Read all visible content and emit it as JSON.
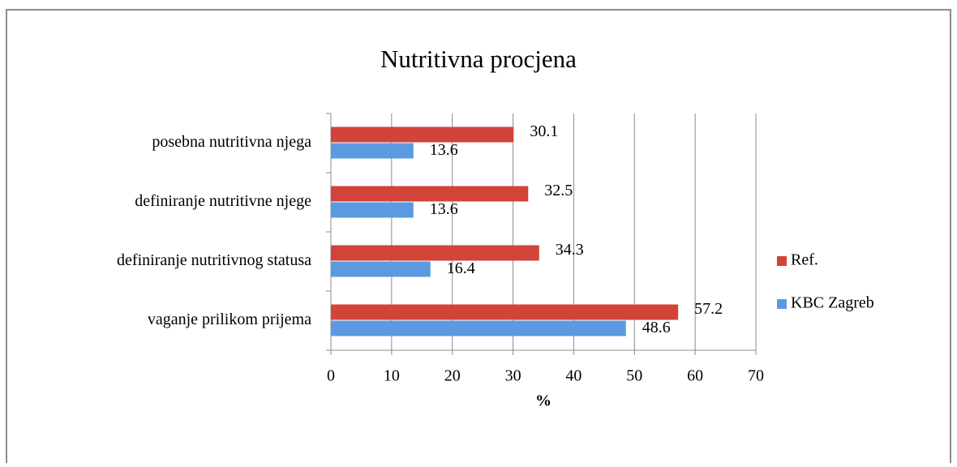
{
  "chart_data": {
    "type": "barh",
    "title": "Nutritivna procjena",
    "categories": [
      "posebna nutritivna njega",
      "definiranje nutritivne njege",
      "definiranje nutritivnog statusa",
      "vaganje prilikom prijema"
    ],
    "series": [
      {
        "name": "Ref.",
        "color": "#d2433a",
        "values": [
          30.1,
          32.5,
          34.3,
          57.2
        ]
      },
      {
        "name": "KBC Zagreb",
        "color": "#5b9ae0",
        "values": [
          13.6,
          13.6,
          16.4,
          48.6
        ]
      }
    ],
    "xlabel": "%",
    "xlim": [
      0,
      70
    ],
    "xticks": [
      0,
      10,
      20,
      30,
      40,
      50,
      60,
      70
    ],
    "grid": true,
    "legend": "right"
  }
}
